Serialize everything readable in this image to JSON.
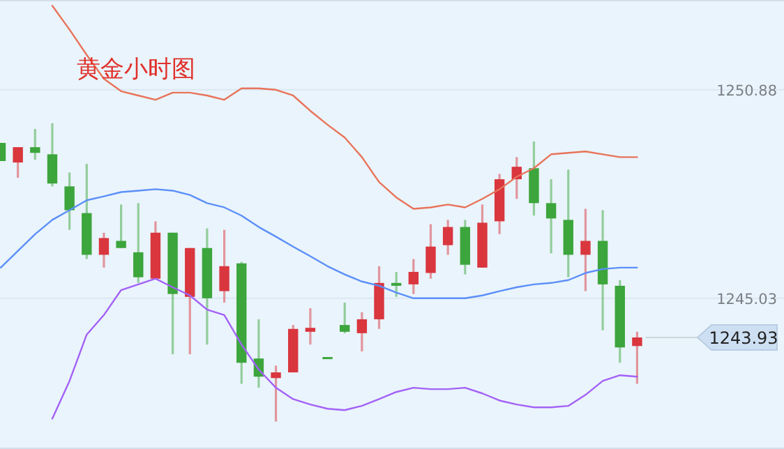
{
  "chart_data": {
    "type": "candlestick",
    "title": "黄金小时图",
    "categories": [
      null,
      null,
      null,
      null,
      null,
      null,
      null,
      null,
      null,
      null,
      null,
      null,
      null,
      null,
      null,
      null,
      null,
      null,
      null,
      null,
      null,
      null,
      null,
      null,
      null,
      null,
      null,
      null,
      null,
      null,
      null,
      null,
      null,
      null,
      null,
      null,
      null,
      null
    ],
    "ohlc": [
      [
        1249.39,
        1249.39,
        1248.88,
        1248.88
      ],
      [
        1248.84,
        1249.27,
        1248.41,
        1249.27
      ],
      [
        1249.27,
        1249.78,
        1248.92,
        1249.11
      ],
      [
        1249.07,
        1249.94,
        1248.17,
        1248.25
      ],
      [
        1248.17,
        1248.56,
        1246.95,
        1247.5
      ],
      [
        1247.42,
        1248.8,
        1246.13,
        1246.25
      ],
      [
        1246.25,
        1246.87,
        1245.89,
        1246.72
      ],
      [
        1246.64,
        1247.66,
        1246.44,
        1246.44
      ],
      [
        1246.32,
        1247.7,
        1245.46,
        1245.62
      ],
      [
        1245.58,
        1247.19,
        1245.58,
        1246.87
      ],
      [
        1246.87,
        1246.87,
        1243.46,
        1245.15
      ],
      [
        1245.07,
        1246.44,
        1243.46,
        1246.44
      ],
      [
        1246.44,
        1246.99,
        1243.73,
        1245.03
      ],
      [
        1245.23,
        1246.95,
        1244.91,
        1245.93
      ],
      [
        1246.01,
        1246.05,
        1242.63,
        1243.22
      ],
      [
        1243.34,
        1244.44,
        1242.52,
        1242.83
      ],
      [
        1242.79,
        1243.14,
        1241.57,
        1242.95
      ],
      [
        1242.95,
        1244.28,
        1242.95,
        1244.17
      ],
      [
        1244.09,
        1244.75,
        1243.73,
        1244.2
      ],
      [
        1243.38,
        1243.38,
        1243.34,
        1243.34
      ],
      [
        1244.28,
        1244.91,
        1244.05,
        1244.09
      ],
      [
        1244.05,
        1244.64,
        1243.54,
        1244.44
      ],
      [
        1244.44,
        1245.93,
        1244.17,
        1245.46
      ],
      [
        1245.46,
        1245.77,
        1245.07,
        1245.38
      ],
      [
        1245.42,
        1246.13,
        1245.15,
        1245.77
      ],
      [
        1245.74,
        1247.11,
        1245.58,
        1246.48
      ],
      [
        1246.52,
        1247.23,
        1246.25,
        1247.03
      ],
      [
        1247.03,
        1247.23,
        1245.7,
        1245.97
      ],
      [
        1245.89,
        1247.66,
        1245.89,
        1247.15
      ],
      [
        1247.19,
        1248.52,
        1246.83,
        1248.37
      ],
      [
        1248.37,
        1248.99,
        1247.82,
        1248.72
      ],
      [
        1248.68,
        1249.43,
        1247.35,
        1247.7
      ],
      [
        1247.7,
        1248.37,
        1246.29,
        1247.27
      ],
      [
        1247.23,
        1248.64,
        1245.62,
        1246.25
      ],
      [
        1246.25,
        1247.54,
        1245.23,
        1246.64
      ],
      [
        1246.64,
        1247.5,
        1244.13,
        1245.42
      ],
      [
        1245.38,
        1245.54,
        1243.22,
        1243.65
      ],
      [
        1243.69,
        1244.09,
        1242.63,
        1243.93
      ]
    ],
    "colors": [
      "#3ca53c",
      "#d9363e",
      "#3ca53c",
      "#3ca53c",
      "#3ca53c",
      "#3ca53c",
      "#d9363e",
      "#3ca53c",
      "#3ca53c",
      "#d9363e",
      "#3ca53c",
      "#d9363e",
      "#3ca53c",
      "#d9363e",
      "#3ca53c",
      "#3ca53c",
      "#d9363e",
      "#d9363e",
      "#d9363e",
      "#3ca53c",
      "#3ca53c",
      "#d9363e",
      "#d9363e",
      "#3ca53c",
      "#d9363e",
      "#d9363e",
      "#d9363e",
      "#3ca53c",
      "#d9363e",
      "#d9363e",
      "#d9363e",
      "#3ca53c",
      "#3ca53c",
      "#3ca53c",
      "#d9363e",
      "#3ca53c",
      "#3ca53c",
      "#d9363e"
    ],
    "series": [
      {
        "type": "line",
        "color": "#e8735a",
        "values": [
          null,
          null,
          null,
          1253.24,
          1252.57,
          1251.86,
          1251.19,
          1250.84,
          1250.72,
          1250.6,
          1250.8,
          1250.8,
          1250.72,
          1250.6,
          1250.92,
          1250.92,
          1250.88,
          1250.72,
          1250.29,
          1249.9,
          1249.54,
          1248.99,
          1248.29,
          1247.86,
          1247.54,
          1247.58,
          1247.66,
          1247.58,
          1247.82,
          1248.09,
          1248.44,
          1248.68,
          1249.07,
          1249.11,
          1249.15,
          1249.07,
          1248.99,
          1248.99
        ]
      },
      {
        "type": "line",
        "color": "#5b8ff9",
        "values": [
          1245.89,
          1246.36,
          1246.83,
          1247.23,
          1247.5,
          1247.78,
          1247.89,
          1248.01,
          1248.05,
          1248.09,
          1248.05,
          1247.93,
          1247.7,
          1247.58,
          1247.35,
          1247.03,
          1246.76,
          1246.48,
          1246.21,
          1245.93,
          1245.7,
          1245.5,
          1245.38,
          1245.19,
          1245.03,
          1245.03,
          1245.03,
          1245.03,
          1245.11,
          1245.23,
          1245.34,
          1245.42,
          1245.46,
          1245.54,
          1245.74,
          1245.85,
          1245.89,
          1245.89
        ]
      },
      {
        "type": "line",
        "color": "#a361f7",
        "values": [
          null,
          null,
          null,
          1241.65,
          1242.71,
          1244.01,
          1244.56,
          1245.26,
          1245.42,
          1245.58,
          1245.34,
          1245.11,
          1244.71,
          1244.56,
          1243.73,
          1243.03,
          1242.52,
          1242.2,
          1242.05,
          1241.93,
          1241.89,
          1242.01,
          1242.2,
          1242.4,
          1242.52,
          1242.48,
          1242.48,
          1242.52,
          1242.36,
          1242.16,
          1242.05,
          1241.97,
          1241.97,
          1242.01,
          1242.32,
          1242.71,
          1242.87,
          1242.83
        ]
      }
    ],
    "ylim": [
      1240.8,
      1253.4
    ],
    "yticks": [
      1250.88,
      1245.03
    ],
    "grid": "y",
    "ref_lines": [
      {
        "axis": "y",
        "value": 1243.93,
        "label": "1243.93"
      }
    ]
  }
}
